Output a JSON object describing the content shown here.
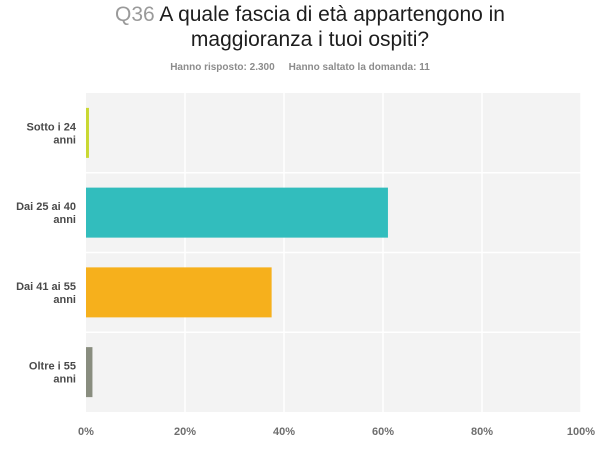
{
  "question": {
    "number": "Q36",
    "text_line1": "A quale fascia di età appartengono in",
    "text_line2": "maggioranza i tuoi ospiti?"
  },
  "stats": {
    "answered": "Hanno risposto: 2.300",
    "skipped": "Hanno saltato la domanda: 11"
  },
  "chart_data": {
    "type": "bar",
    "orientation": "horizontal",
    "categories": [
      [
        "Sotto i 24",
        "anni"
      ],
      [
        "Dai 25 ai 40",
        "anni"
      ],
      [
        "Dai 41 ai 55",
        "anni"
      ],
      [
        "Oltre i 55",
        "anni"
      ]
    ],
    "values": [
      0.6,
      61,
      37.5,
      1.3
    ],
    "colors": [
      "#c9d832",
      "#32bdbd",
      "#f6b01c",
      "#898d7f"
    ],
    "xticks": [
      "0%",
      "20%",
      "40%",
      "60%",
      "80%",
      "100%"
    ],
    "xlim": [
      0,
      100
    ],
    "grid": true,
    "background": "#f3f3f3"
  }
}
